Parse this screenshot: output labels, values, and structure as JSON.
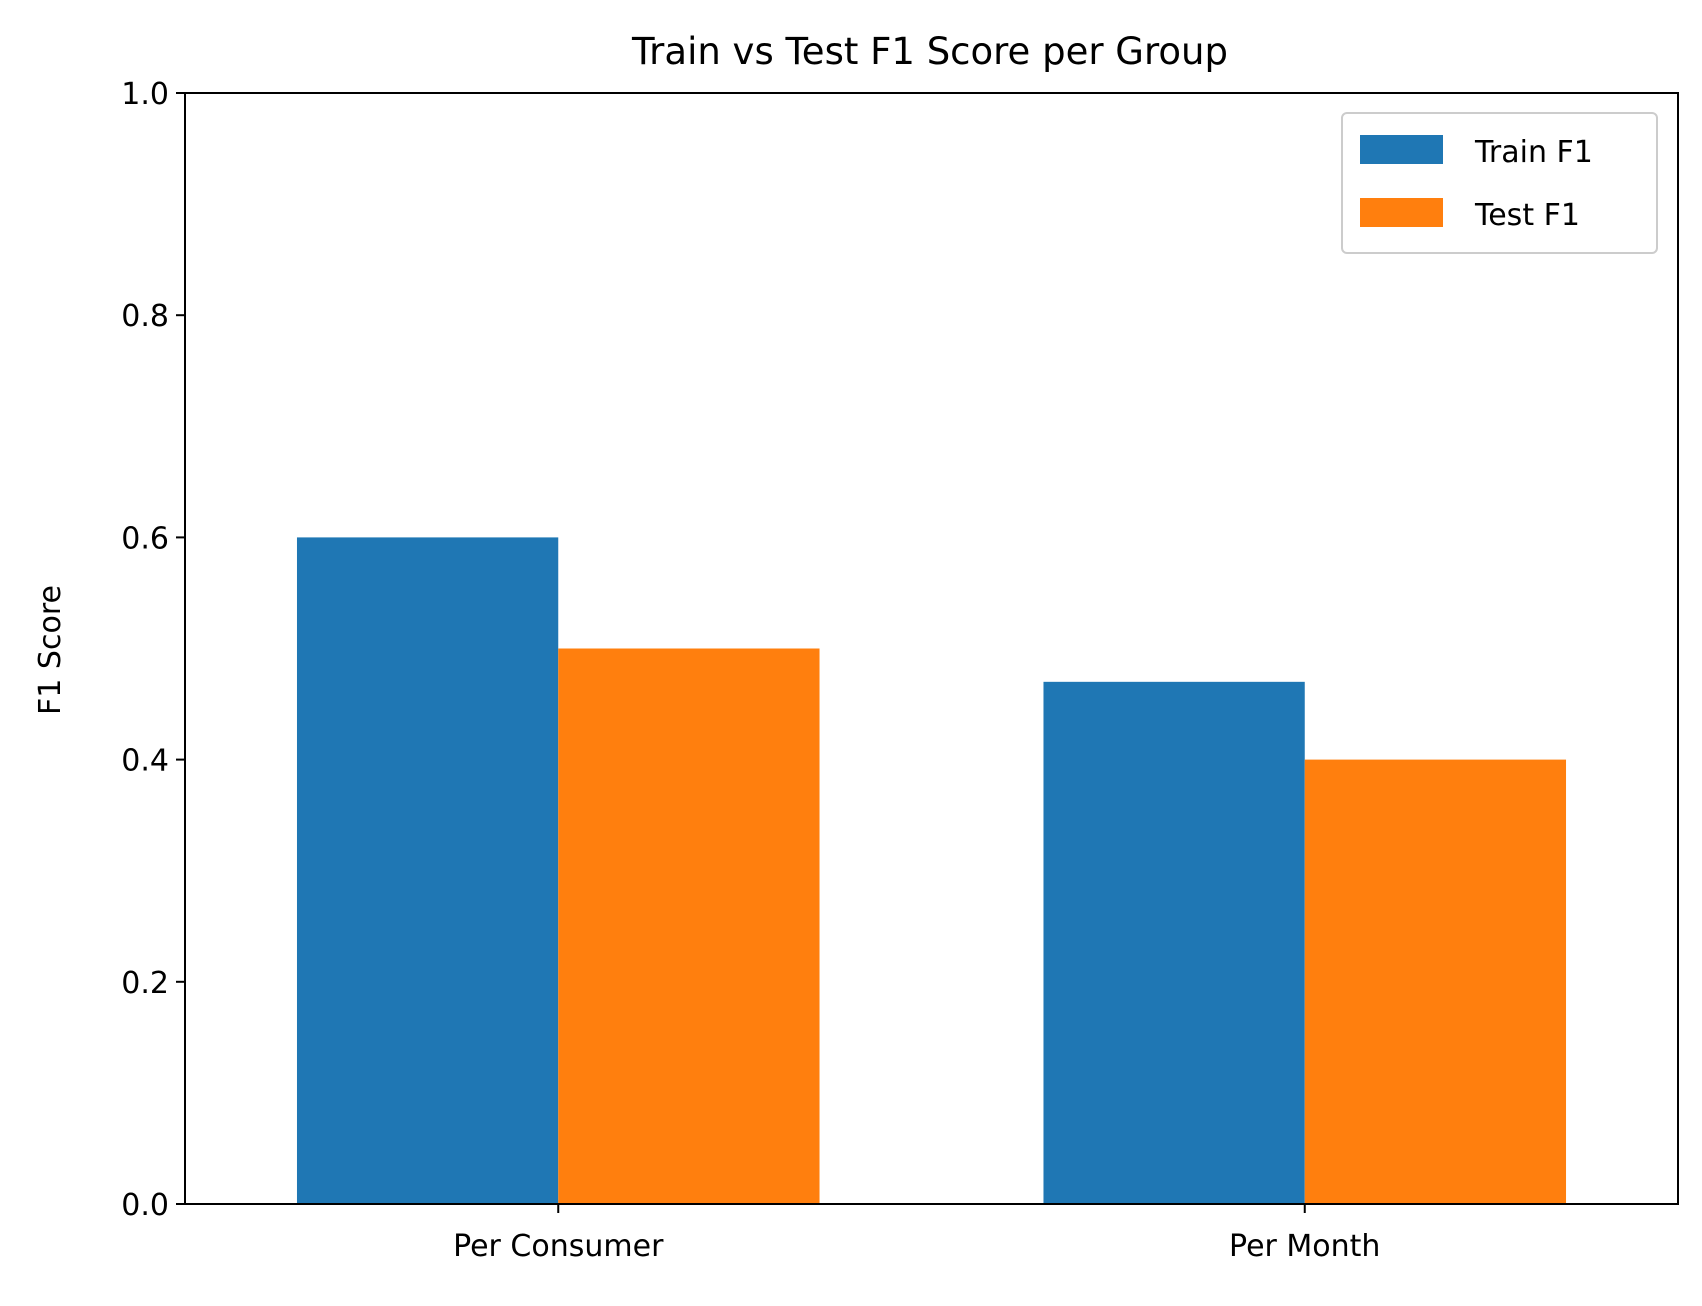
{
  "chart_data": {
    "type": "bar",
    "title": "Train vs Test F1 Score per Group",
    "xlabel": "",
    "ylabel": "F1 Score",
    "categories": [
      "Per Consumer",
      "Per Month"
    ],
    "series": [
      {
        "name": "Train F1",
        "values": [
          0.6,
          0.47
        ],
        "color": "#1f77b4"
      },
      {
        "name": "Test F1",
        "values": [
          0.5,
          0.4
        ],
        "color": "#ff7f0e"
      }
    ],
    "ylim": [
      0,
      1.0
    ],
    "yticks": [
      "0.0",
      "0.2",
      "0.4",
      "0.6",
      "0.8",
      "1.0"
    ],
    "grid": false,
    "legend_position": "top-right"
  }
}
